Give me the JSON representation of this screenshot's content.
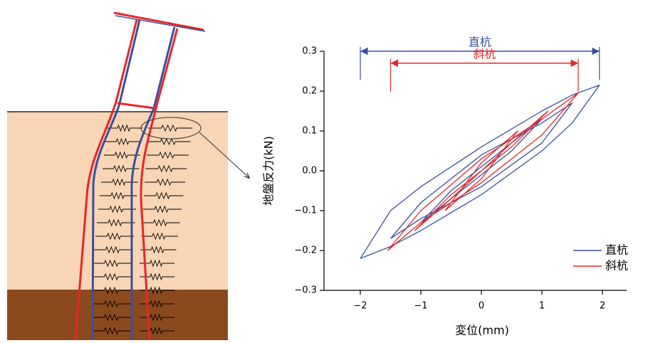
{
  "chart_data": {
    "type": "line",
    "x_label": "変位(mm)",
    "y_label": "地盤反力(kN)",
    "xlim": [
      -2.6,
      2.4
    ],
    "xticks": [
      {
        "value": -2,
        "label": "−2"
      },
      {
        "value": -1,
        "label": "−1"
      },
      0,
      1,
      2
    ],
    "ylim": [
      -0.3,
      0.3
    ],
    "yticks": [
      {
        "value": -0.3,
        "label": "−0.3"
      },
      {
        "value": -0.2,
        "label": "−0.2"
      },
      {
        "value": -0.1,
        "label": "−0.1"
      },
      {
        "value": 0,
        "label": "0.0"
      },
      0.1,
      0.2,
      0.3
    ],
    "grid": false,
    "legend": "lower right",
    "series": [
      {
        "name": "直杭",
        "color": "#3a4fa0",
        "x": [
          -2,
          -1.5,
          -1,
          0,
          1,
          1.5,
          1.95,
          1.5,
          1,
          0,
          -1,
          -1.5,
          -2,
          null,
          -1.5,
          -1,
          0,
          1,
          1.5,
          1,
          0,
          -1,
          -1.5,
          null,
          -1,
          -0.5,
          0,
          0.5,
          1,
          0.5,
          0,
          -0.5,
          -1
        ],
        "y": [
          -0.22,
          -0.1,
          -0.04,
          0.06,
          0.15,
          0.19,
          0.215,
          0.12,
          0.05,
          -0.06,
          -0.15,
          -0.19,
          -0.22,
          null,
          -0.17,
          -0.08,
          0.04,
          0.12,
          0.17,
          0.07,
          -0.04,
          -0.12,
          -0.17,
          null,
          -0.13,
          -0.05,
          0.01,
          0.07,
          0.13,
          0.05,
          -0.01,
          -0.07,
          -0.13
        ]
      },
      {
        "name": "斜杭",
        "color": "#e8262a",
        "x": [
          -1.55,
          -1,
          0,
          1,
          1.6,
          1,
          0,
          -1,
          -1.55,
          null,
          -1.1,
          -0.5,
          0,
          0.5,
          1.1,
          0.5,
          0,
          -0.5,
          -1.1,
          null,
          -0.6,
          0,
          0.6,
          0,
          -0.6
        ],
        "y": [
          -0.2,
          -0.1,
          0.03,
          0.13,
          0.195,
          0.09,
          -0.03,
          -0.13,
          -0.2,
          null,
          -0.15,
          -0.06,
          0,
          0.07,
          0.15,
          0.06,
          0,
          -0.07,
          -0.15,
          null,
          -0.1,
          0.02,
          0.1,
          -0.02,
          -0.1
        ]
      }
    ],
    "annotations": [
      {
        "text": "直杭",
        "x": [
          -2,
          1.95
        ],
        "y": 0.3,
        "color": "#3a4fa0"
      },
      {
        "text": "斜杭",
        "x": [
          -1.5,
          1.6
        ],
        "y": 0.27,
        "color": "#e8262a"
      }
    ]
  }
}
